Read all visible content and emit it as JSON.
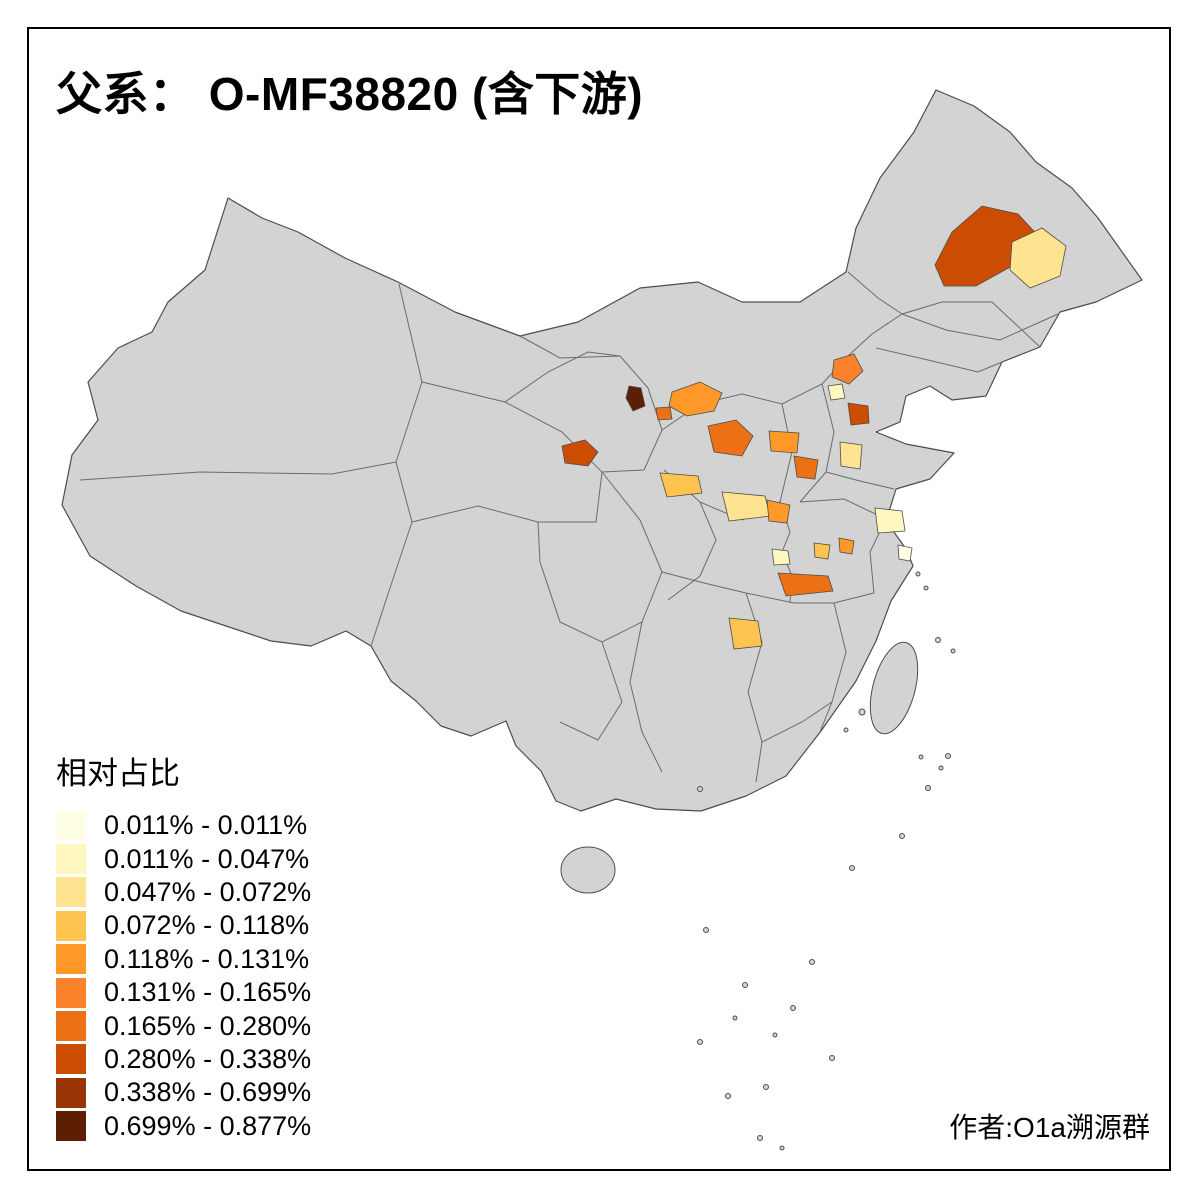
{
  "title": "父系： O-MF38820 (含下游)",
  "legend": {
    "title": "相对占比",
    "classes": [
      {
        "label": "0.011% - 0.011%",
        "color": "#FFFFE5"
      },
      {
        "label": "0.011% - 0.047%",
        "color": "#FFF7C0"
      },
      {
        "label": "0.047% - 0.072%",
        "color": "#FEE391"
      },
      {
        "label": "0.072% - 0.118%",
        "color": "#FEC44F"
      },
      {
        "label": "0.118% - 0.131%",
        "color": "#FE9929"
      },
      {
        "label": "0.131% - 0.165%",
        "color": "#F9822A"
      },
      {
        "label": "0.165% - 0.280%",
        "color": "#EC7014"
      },
      {
        "label": "0.280% - 0.338%",
        "color": "#CC4C02"
      },
      {
        "label": "0.338% - 0.699%",
        "color": "#993404"
      },
      {
        "label": "0.699% - 0.877%",
        "color": "#5C1F03"
      }
    ]
  },
  "attribution": "作者:O1a溯源群",
  "map": {
    "land_color": "#D3D3D3",
    "border_color": "#4D4D4D",
    "region_stroke": "#4D4D4D",
    "regions": [
      {
        "id": "r1",
        "class": 8,
        "points": [
          [
            935,
            265
          ],
          [
            952,
            232
          ],
          [
            982,
            206
          ],
          [
            1018,
            214
          ],
          [
            1042,
            240
          ],
          [
            1012,
            266
          ],
          [
            976,
            286
          ],
          [
            944,
            286
          ]
        ]
      },
      {
        "id": "r2",
        "class": 3,
        "points": [
          [
            1012,
            242
          ],
          [
            1042,
            228
          ],
          [
            1066,
            246
          ],
          [
            1060,
            276
          ],
          [
            1030,
            288
          ],
          [
            1010,
            270
          ]
        ]
      },
      {
        "id": "r3",
        "class": 6,
        "points": [
          [
            834,
            360
          ],
          [
            854,
            354
          ],
          [
            863,
            371
          ],
          [
            849,
            384
          ],
          [
            832,
            377
          ]
        ]
      },
      {
        "id": "r4",
        "class": 2,
        "points": [
          [
            828,
            386
          ],
          [
            842,
            384
          ],
          [
            845,
            398
          ],
          [
            831,
            400
          ]
        ]
      },
      {
        "id": "r5",
        "class": 8,
        "points": [
          [
            848,
            403
          ],
          [
            868,
            406
          ],
          [
            869,
            423
          ],
          [
            851,
            425
          ]
        ]
      },
      {
        "id": "r6",
        "class": 5,
        "points": [
          [
            672,
            392
          ],
          [
            700,
            382
          ],
          [
            722,
            393
          ],
          [
            714,
            411
          ],
          [
            687,
            416
          ],
          [
            669,
            406
          ]
        ]
      },
      {
        "id": "r7",
        "class": 10,
        "points": [
          [
            629,
            386
          ],
          [
            641,
            388
          ],
          [
            645,
            406
          ],
          [
            633,
            411
          ],
          [
            626,
            398
          ]
        ]
      },
      {
        "id": "r8",
        "class": 7,
        "points": [
          [
            656,
            408
          ],
          [
            670,
            407
          ],
          [
            672,
            419
          ],
          [
            658,
            420
          ]
        ]
      },
      {
        "id": "r9",
        "class": 8,
        "points": [
          [
            562,
            446
          ],
          [
            585,
            440
          ],
          [
            598,
            452
          ],
          [
            588,
            466
          ],
          [
            565,
            463
          ]
        ]
      },
      {
        "id": "r10",
        "class": 7,
        "points": [
          [
            708,
            426
          ],
          [
            736,
            420
          ],
          [
            753,
            436
          ],
          [
            742,
            456
          ],
          [
            714,
            452
          ]
        ]
      },
      {
        "id": "r11",
        "class": 5,
        "points": [
          [
            769,
            431
          ],
          [
            799,
            433
          ],
          [
            797,
            453
          ],
          [
            771,
            451
          ]
        ]
      },
      {
        "id": "r12",
        "class": 7,
        "points": [
          [
            794,
            456
          ],
          [
            818,
            460
          ],
          [
            815,
            479
          ],
          [
            797,
            477
          ]
        ]
      },
      {
        "id": "r13",
        "class": 3,
        "points": [
          [
            840,
            442
          ],
          [
            862,
            445
          ],
          [
            860,
            469
          ],
          [
            841,
            466
          ]
        ]
      },
      {
        "id": "r14",
        "class": 4,
        "points": [
          [
            660,
            473
          ],
          [
            698,
            476
          ],
          [
            702,
            493
          ],
          [
            667,
            497
          ]
        ]
      },
      {
        "id": "r15",
        "class": 3,
        "points": [
          [
            722,
            492
          ],
          [
            765,
            496
          ],
          [
            770,
            516
          ],
          [
            729,
            521
          ]
        ]
      },
      {
        "id": "r16",
        "class": 5,
        "points": [
          [
            767,
            500
          ],
          [
            790,
            505
          ],
          [
            787,
            523
          ],
          [
            769,
            521
          ]
        ]
      },
      {
        "id": "r17",
        "class": 2,
        "points": [
          [
            875,
            508
          ],
          [
            902,
            511
          ],
          [
            905,
            531
          ],
          [
            878,
            533
          ]
        ]
      },
      {
        "id": "r18",
        "class": 1,
        "points": [
          [
            898,
            545
          ],
          [
            912,
            548
          ],
          [
            910,
            561
          ],
          [
            899,
            559
          ]
        ]
      },
      {
        "id": "r19",
        "class": 4,
        "points": [
          [
            814,
            543
          ],
          [
            830,
            545
          ],
          [
            828,
            559
          ],
          [
            815,
            557
          ]
        ]
      },
      {
        "id": "r20",
        "class": 5,
        "points": [
          [
            839,
            538
          ],
          [
            854,
            541
          ],
          [
            852,
            554
          ],
          [
            840,
            552
          ]
        ]
      },
      {
        "id": "r21",
        "class": 2,
        "points": [
          [
            772,
            549
          ],
          [
            788,
            551
          ],
          [
            790,
            564
          ],
          [
            774,
            565
          ]
        ]
      },
      {
        "id": "r22",
        "class": 7,
        "points": [
          [
            778,
            573
          ],
          [
            828,
            576
          ],
          [
            833,
            591
          ],
          [
            786,
            596
          ]
        ]
      },
      {
        "id": "r23",
        "class": 4,
        "points": [
          [
            729,
            618
          ],
          [
            758,
            621
          ],
          [
            762,
            646
          ],
          [
            734,
            649
          ]
        ]
      }
    ]
  }
}
